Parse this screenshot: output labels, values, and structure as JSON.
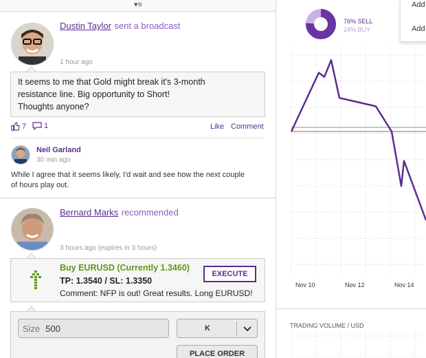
{
  "feed": {
    "broadcast": {
      "author": "Dustin Taylor",
      "action": "sent a broadcast",
      "time": "1 hour ago",
      "message_lines": [
        "It seems to me that Gold might break it's 3-month",
        "resistance line. Big opportunity  to Short!",
        "Thoughts anyone?"
      ],
      "likes": "7",
      "comments": "1",
      "like_label": "Like",
      "comment_label": "Comment"
    },
    "reply": {
      "author": "Neil Garland",
      "time": "30 min ago",
      "text_lines": [
        "While I agree that it seems likely, I'd wait and see how the next couple",
        "of hours play out."
      ]
    },
    "recommendation": {
      "author": "Bernard Marks",
      "action": "recommended",
      "time": "3 hours ago (expires in 3 hours)",
      "signal_title": "Buy EURUSD (Currently 1.3460)",
      "tp_sl": "TP: 1.3540 / SL: 1.3350",
      "comment": "Comment: NFP is out! Great results. Long EURUSD!",
      "execute_label": "EXECUTE"
    },
    "order": {
      "size_label": "Size",
      "size_value": "500",
      "unit": "K",
      "place_order_label": "PLACE ORDER"
    }
  },
  "sentiment": {
    "sell_label": "76% SELL",
    "buy_label": "24% BUY",
    "sell_fraction": 0.76
  },
  "chart_data": {
    "type": "line",
    "x_tick_labels": [
      "Nov 10",
      "Nov 12",
      "Nov 14"
    ],
    "series": [
      {
        "values": [
          0,
          0.7,
          0.65,
          0.85,
          0.4,
          0.3,
          0,
          -0.65,
          -0.35,
          -1.1
        ]
      }
    ],
    "reference_lines": [
      {
        "value": 0.05,
        "color": "#6aa84f"
      },
      {
        "value": 0,
        "color": "#c0504d"
      }
    ],
    "line_color": "#5b2d8e"
  },
  "volume_title": "TRADING VOLUME / USD",
  "menu": {
    "items": [
      "Add",
      "Add"
    ]
  },
  "colors": {
    "accent": "#5b2d8e",
    "buy_green": "#5a9a18"
  }
}
